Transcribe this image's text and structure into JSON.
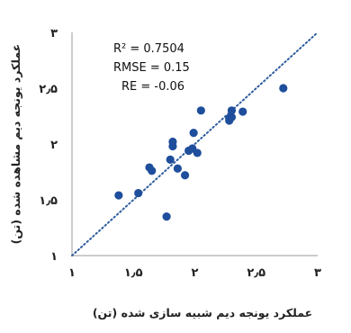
{
  "chart_data": {
    "type": "scatter",
    "xlabel": "عملکرد یونجه دیم شبیه سازی شده (تن)",
    "ylabel": "عملکرد یونجه دیم مشاهده شده (تن)",
    "xlim": [
      1,
      3
    ],
    "ylim": [
      1,
      3
    ],
    "x_ticks": [
      1,
      1.5,
      2,
      2.5,
      3
    ],
    "y_ticks": [
      1,
      1.5,
      2,
      2.5,
      3
    ],
    "x_tick_labels": [
      "۱",
      "۱٫۵",
      "۲",
      "۲٫۵",
      "۳"
    ],
    "y_tick_labels": [
      "۱",
      "۱٫۵",
      "۲",
      "۲٫۵",
      "۳"
    ],
    "grid": false,
    "annotations": [
      "R² = 0.7504",
      "RMSE = 0.15",
      "RE = -0.06"
    ],
    "reference_line": {
      "style": "dotted",
      "color": "#2E5C9E",
      "from": [
        1,
        1
      ],
      "to": [
        3,
        3
      ]
    },
    "marker_color": "#1F4E9C",
    "series": [
      {
        "points": [
          [
            1.38,
            1.54
          ],
          [
            1.54,
            1.56
          ],
          [
            1.63,
            1.79
          ],
          [
            1.65,
            1.76
          ],
          [
            1.77,
            1.35
          ],
          [
            1.8,
            1.86
          ],
          [
            1.82,
            1.98
          ],
          [
            1.82,
            2.02
          ],
          [
            1.86,
            1.78
          ],
          [
            1.92,
            1.72
          ],
          [
            1.95,
            1.94
          ],
          [
            1.98,
            1.96
          ],
          [
            1.99,
            2.1
          ],
          [
            2.02,
            1.92
          ],
          [
            2.05,
            2.3
          ],
          [
            2.28,
            2.21
          ],
          [
            2.28,
            2.23
          ],
          [
            2.3,
            2.24
          ],
          [
            2.3,
            2.3
          ],
          [
            2.39,
            2.29
          ],
          [
            2.72,
            2.5
          ]
        ]
      }
    ]
  }
}
